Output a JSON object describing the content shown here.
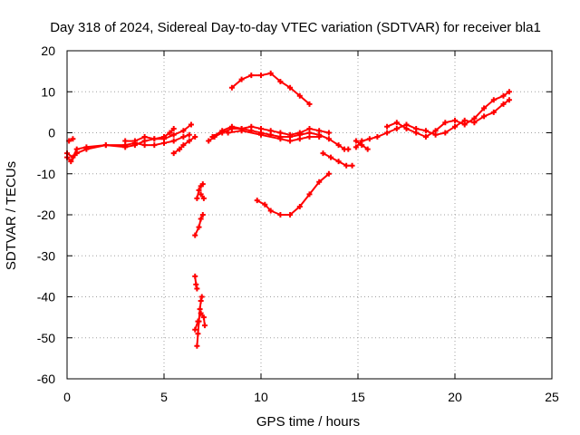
{
  "chart_data": {
    "type": "scatter",
    "title": "Day 318 of 2024, Sidereal Day-to-day VTEC variation (SDTVAR) for receiver bla1",
    "xlabel": "GPS time / hours",
    "ylabel": "SDTVAR / TECUs",
    "xlim": [
      0,
      25
    ],
    "ylim": [
      -60,
      20
    ],
    "xticks": [
      0,
      5,
      10,
      15,
      20,
      25
    ],
    "yticks": [
      20,
      10,
      0,
      -10,
      -20,
      -30,
      -40,
      -50,
      -60
    ],
    "grid": true,
    "color": "#ff0000",
    "series": [
      {
        "name": "segment-1",
        "points": [
          [
            0.0,
            -6
          ],
          [
            0.2,
            -7
          ],
          [
            0.5,
            -5
          ],
          [
            1.0,
            -4
          ],
          [
            2.0,
            -3
          ],
          [
            3.0,
            -3.5
          ],
          [
            3.5,
            -3
          ],
          [
            4.0,
            -2
          ],
          [
            4.5,
            -1.5
          ],
          [
            5.0,
            -1
          ],
          [
            5.3,
            0
          ],
          [
            5.5,
            1
          ]
        ]
      },
      {
        "name": "segment-2",
        "points": [
          [
            0.0,
            -5
          ],
          [
            0.3,
            -6
          ],
          [
            0.5,
            -4
          ],
          [
            1.0,
            -3.5
          ],
          [
            2.0,
            -3
          ],
          [
            3.0,
            -3
          ],
          [
            3.5,
            -2.5
          ],
          [
            4.0,
            -3
          ],
          [
            4.5,
            -3
          ],
          [
            5.0,
            -2.5
          ],
          [
            5.5,
            -2
          ],
          [
            6.0,
            -1
          ],
          [
            6.3,
            -0.5
          ]
        ]
      },
      {
        "name": "segment-3",
        "points": [
          [
            0.1,
            -2
          ],
          [
            0.3,
            -1.5
          ]
        ]
      },
      {
        "name": "segment-4",
        "points": [
          [
            3.0,
            -2
          ],
          [
            3.5,
            -2
          ],
          [
            4.0,
            -1
          ],
          [
            4.5,
            -1.5
          ],
          [
            5.0,
            -1.5
          ],
          [
            5.5,
            -0.5
          ],
          [
            6.0,
            0.5
          ],
          [
            6.4,
            2
          ]
        ]
      },
      {
        "name": "segment-5",
        "points": [
          [
            5.5,
            -5
          ],
          [
            5.8,
            -4
          ],
          [
            6.0,
            -3
          ],
          [
            6.3,
            -2
          ],
          [
            6.6,
            -1
          ]
        ]
      },
      {
        "name": "segment-6",
        "points": [
          [
            6.7,
            -16
          ],
          [
            6.8,
            -14
          ],
          [
            6.9,
            -13
          ],
          [
            7.0,
            -12.5
          ]
        ]
      },
      {
        "name": "segment-7",
        "points": [
          [
            6.9,
            -15
          ],
          [
            7.05,
            -16
          ]
        ]
      },
      {
        "name": "segment-8",
        "points": [
          [
            6.6,
            -25
          ],
          [
            6.8,
            -23
          ],
          [
            6.9,
            -21
          ],
          [
            7.0,
            -20
          ]
        ]
      },
      {
        "name": "segment-9",
        "points": [
          [
            6.6,
            -35
          ],
          [
            6.65,
            -37
          ],
          [
            6.7,
            -38
          ]
        ]
      },
      {
        "name": "segment-10",
        "points": [
          [
            6.7,
            -52
          ],
          [
            6.75,
            -49
          ],
          [
            6.8,
            -46
          ],
          [
            6.85,
            -43
          ],
          [
            6.9,
            -41
          ],
          [
            6.95,
            -40
          ]
        ]
      },
      {
        "name": "segment-11",
        "points": [
          [
            6.6,
            -48
          ],
          [
            6.75,
            -46
          ],
          [
            6.9,
            -44
          ],
          [
            7.05,
            -45
          ],
          [
            7.1,
            -47
          ]
        ]
      },
      {
        "name": "segment-12",
        "points": [
          [
            7.3,
            -2
          ],
          [
            7.6,
            -1
          ],
          [
            8.0,
            0
          ],
          [
            8.5,
            1
          ],
          [
            9.0,
            1
          ],
          [
            9.5,
            0.5
          ],
          [
            10.0,
            0
          ],
          [
            10.5,
            -0.5
          ],
          [
            11.0,
            -1
          ],
          [
            11.5,
            -1
          ],
          [
            12.0,
            -0.5
          ],
          [
            12.5,
            0
          ],
          [
            13.0,
            -0.5
          ],
          [
            13.5,
            -1.5
          ],
          [
            14.0,
            -3
          ],
          [
            14.3,
            -4
          ],
          [
            14.5,
            -4
          ]
        ]
      },
      {
        "name": "segment-13",
        "points": [
          [
            7.5,
            -1
          ],
          [
            8.0,
            0.5
          ],
          [
            8.5,
            1.5
          ],
          [
            9.0,
            1
          ],
          [
            9.5,
            1.5
          ],
          [
            10.0,
            1
          ],
          [
            10.5,
            0.5
          ],
          [
            11.0,
            0
          ],
          [
            11.5,
            -0.5
          ],
          [
            12.0,
            0
          ],
          [
            12.5,
            1
          ],
          [
            13.0,
            0.5
          ],
          [
            13.5,
            0
          ]
        ]
      },
      {
        "name": "segment-14",
        "points": [
          [
            8.3,
            0
          ],
          [
            9.0,
            0.5
          ],
          [
            10.0,
            -0.5
          ],
          [
            11.0,
            -1.5
          ],
          [
            11.5,
            -2
          ],
          [
            12.0,
            -1.5
          ],
          [
            12.5,
            -1
          ],
          [
            13.0,
            -1
          ]
        ]
      },
      {
        "name": "segment-15",
        "points": [
          [
            8.5,
            11
          ],
          [
            9.0,
            13
          ],
          [
            9.5,
            14
          ],
          [
            10.0,
            14
          ],
          [
            10.5,
            14.5
          ],
          [
            11.0,
            12.5
          ],
          [
            11.5,
            11
          ],
          [
            12.0,
            9
          ],
          [
            12.5,
            7
          ]
        ]
      },
      {
        "name": "segment-16",
        "points": [
          [
            9.8,
            -16.5
          ],
          [
            10.2,
            -17.5
          ],
          [
            10.5,
            -19
          ],
          [
            11.0,
            -20
          ],
          [
            11.5,
            -20
          ],
          [
            12.0,
            -18
          ],
          [
            12.5,
            -15
          ],
          [
            13.0,
            -12
          ],
          [
            13.5,
            -10
          ]
        ]
      },
      {
        "name": "segment-17",
        "points": [
          [
            13.2,
            -5
          ],
          [
            13.6,
            -6
          ],
          [
            14.0,
            -7
          ],
          [
            14.4,
            -8
          ],
          [
            14.7,
            -8
          ]
        ]
      },
      {
        "name": "segment-18",
        "points": [
          [
            14.9,
            -2
          ],
          [
            15.2,
            -3
          ],
          [
            15.5,
            -4
          ]
        ]
      },
      {
        "name": "segment-19",
        "points": [
          [
            14.9,
            -3.5
          ],
          [
            15.2,
            -2
          ],
          [
            15.6,
            -1.5
          ],
          [
            16.0,
            -1
          ],
          [
            16.5,
            0
          ],
          [
            17.0,
            1
          ],
          [
            17.5,
            2
          ],
          [
            18.0,
            1
          ],
          [
            18.5,
            0.5
          ],
          [
            19.0,
            -0.5
          ],
          [
            19.5,
            0
          ],
          [
            20.0,
            1.5
          ],
          [
            20.5,
            3
          ],
          [
            21.0,
            2.5
          ],
          [
            21.5,
            4
          ],
          [
            22.0,
            5
          ],
          [
            22.5,
            7
          ],
          [
            22.8,
            8
          ]
        ]
      },
      {
        "name": "segment-20",
        "points": [
          [
            16.5,
            1.5
          ],
          [
            17.0,
            2.5
          ],
          [
            17.5,
            1
          ],
          [
            18.0,
            0
          ],
          [
            18.5,
            -1
          ],
          [
            19.0,
            0.5
          ],
          [
            19.5,
            2.5
          ],
          [
            20.0,
            3
          ],
          [
            20.5,
            2
          ],
          [
            21.0,
            3.5
          ],
          [
            21.5,
            6
          ],
          [
            22.0,
            8
          ],
          [
            22.5,
            9
          ],
          [
            22.8,
            10
          ]
        ]
      }
    ]
  }
}
